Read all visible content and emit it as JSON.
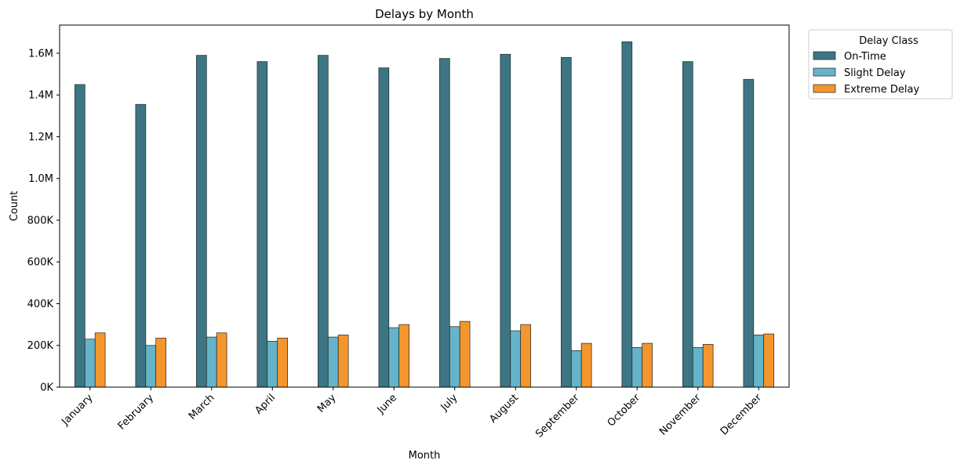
{
  "chart_data": {
    "type": "bar",
    "title": "Delays by Month",
    "xlabel": "Month",
    "ylabel": "Count",
    "categories": [
      "January",
      "February",
      "March",
      "April",
      "May",
      "June",
      "July",
      "August",
      "September",
      "October",
      "November",
      "December"
    ],
    "series": [
      {
        "name": "On-Time",
        "color": "#3c7684",
        "values": [
          1450000,
          1355000,
          1590000,
          1560000,
          1590000,
          1530000,
          1575000,
          1595000,
          1580000,
          1655000,
          1560000,
          1475000
        ]
      },
      {
        "name": "Slight Delay",
        "color": "#66b4c9",
        "values": [
          230000,
          200000,
          240000,
          220000,
          240000,
          285000,
          290000,
          270000,
          175000,
          190000,
          190000,
          250000
        ]
      },
      {
        "name": "Extreme Delay",
        "color": "#f4962e",
        "values": [
          260000,
          235000,
          260000,
          235000,
          250000,
          300000,
          315000,
          300000,
          210000,
          210000,
          205000,
          255000
        ]
      }
    ],
    "ylim": [
      0,
      1735000
    ],
    "yticks": [
      0,
      200000,
      400000,
      600000,
      800000,
      1000000,
      1200000,
      1400000,
      1600000
    ],
    "ytick_labels": [
      "0K",
      "200K",
      "400K",
      "600K",
      "800K",
      "1.0M",
      "1.2M",
      "1.4M",
      "1.6M"
    ],
    "grid": false,
    "legend": {
      "title": "Delay Class",
      "placement": "outside-top-right"
    }
  }
}
